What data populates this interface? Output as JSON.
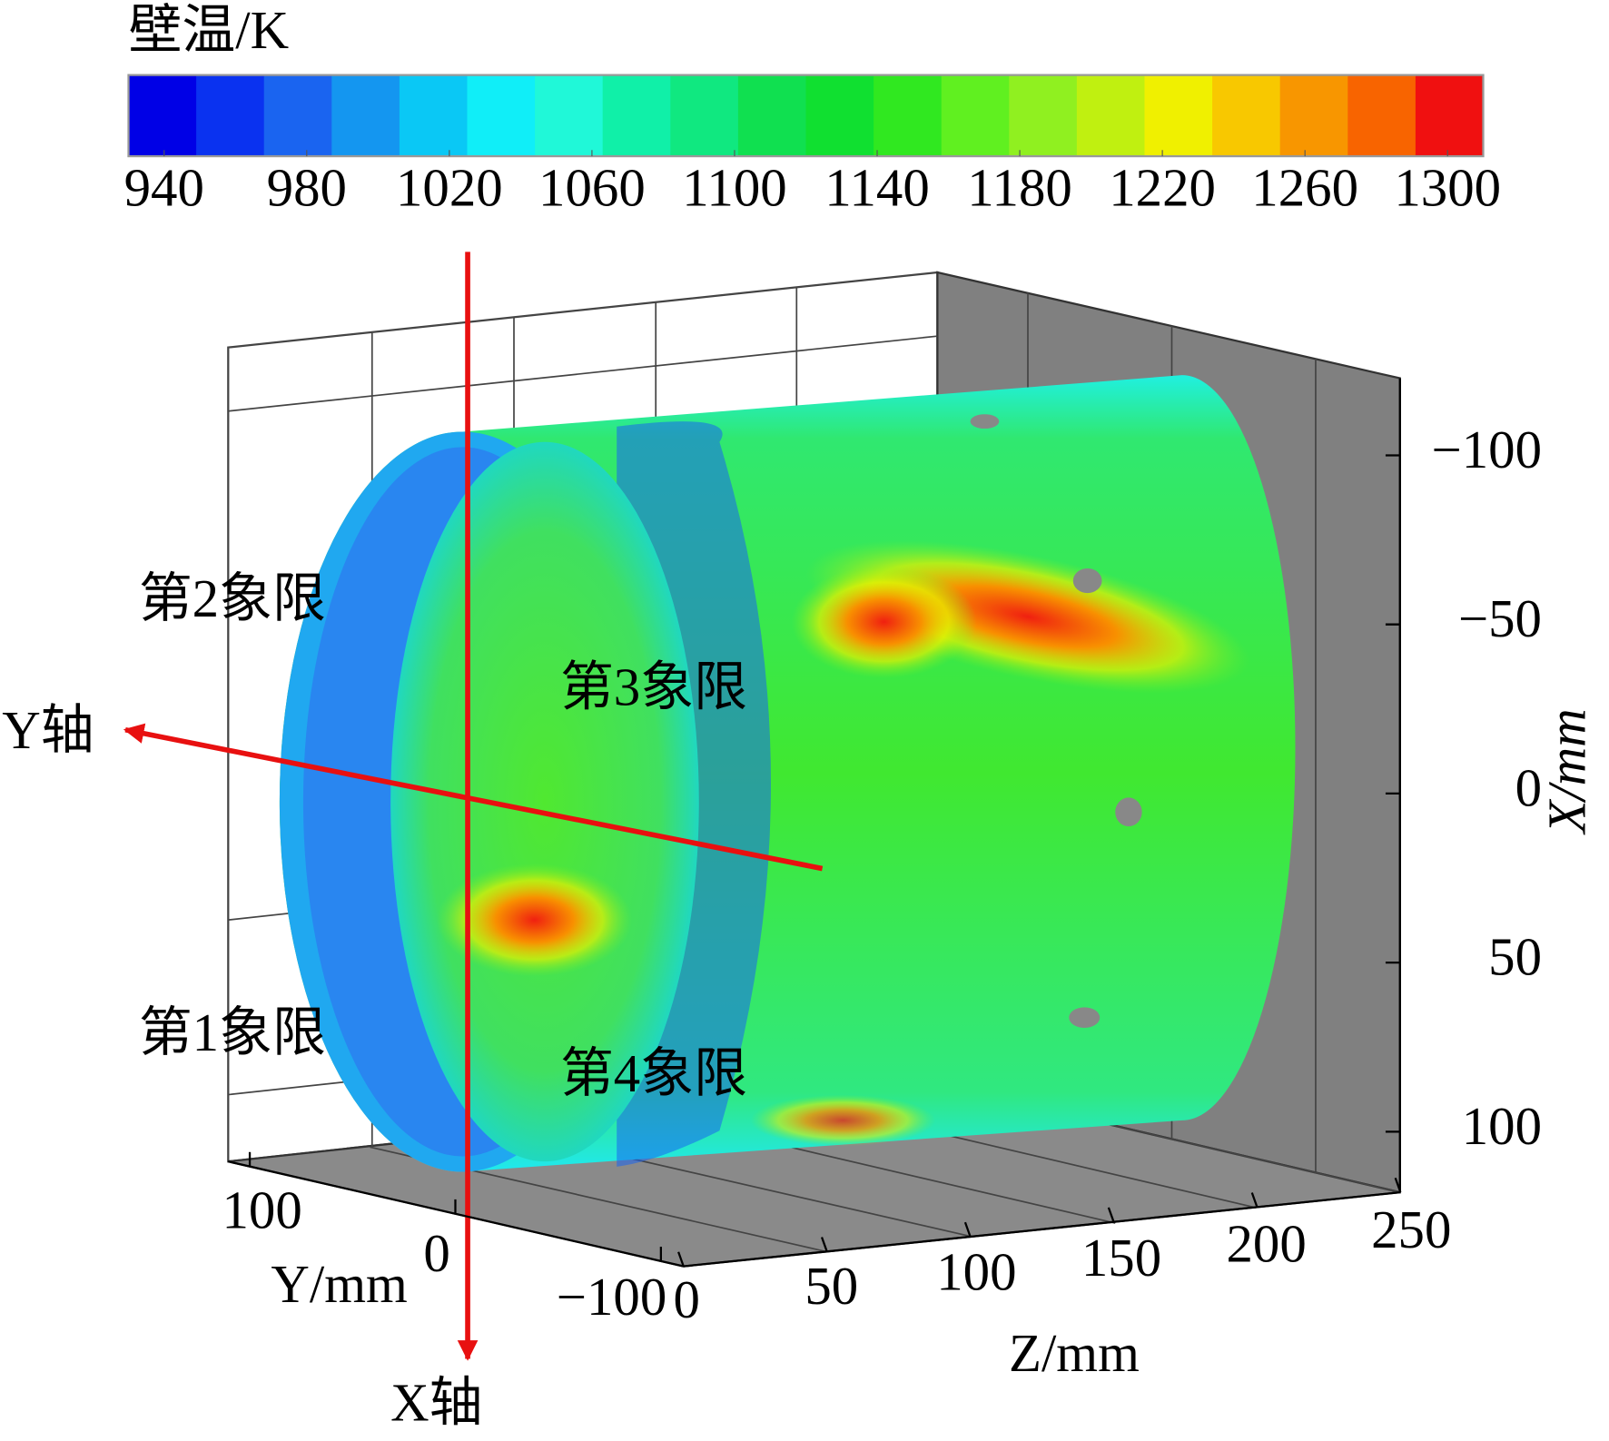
{
  "chart_data": {
    "type": "contour3d",
    "colorbar": {
      "title": "壁温/K",
      "clim": [
        930,
        1310
      ],
      "ticks": [
        940,
        980,
        1020,
        1060,
        1100,
        1140,
        1180,
        1220,
        1260,
        1300
      ],
      "colors": [
        "#0000e6",
        "#0a32f0",
        "#1a64f0",
        "#1496f0",
        "#0ac8f5",
        "#10eef8",
        "#20f8d8",
        "#10f0a8",
        "#10e880",
        "#10e050",
        "#10e030",
        "#30e820",
        "#60f020",
        "#90f020",
        "#c0f010",
        "#f0f000",
        "#f8c800",
        "#f89600",
        "#f86400",
        "#f01010"
      ]
    },
    "x_axis": {
      "label": "X/mm",
      "ticks": [
        {
          "value": -100,
          "label": "−100"
        },
        {
          "value": -50,
          "label": "−50"
        },
        0,
        50,
        100
      ]
    },
    "y_axis": {
      "label": "Y/mm",
      "ticks": [
        100,
        0,
        {
          "value": -100,
          "label": "−100"
        }
      ]
    },
    "z_axis": {
      "label": "Z/mm",
      "ticks": [
        0,
        50,
        100,
        150,
        200,
        250
      ]
    },
    "annotations": [
      "第2象限",
      "第3象限",
      "第1象限",
      "第4象限",
      "Y轴",
      "X轴"
    ]
  }
}
